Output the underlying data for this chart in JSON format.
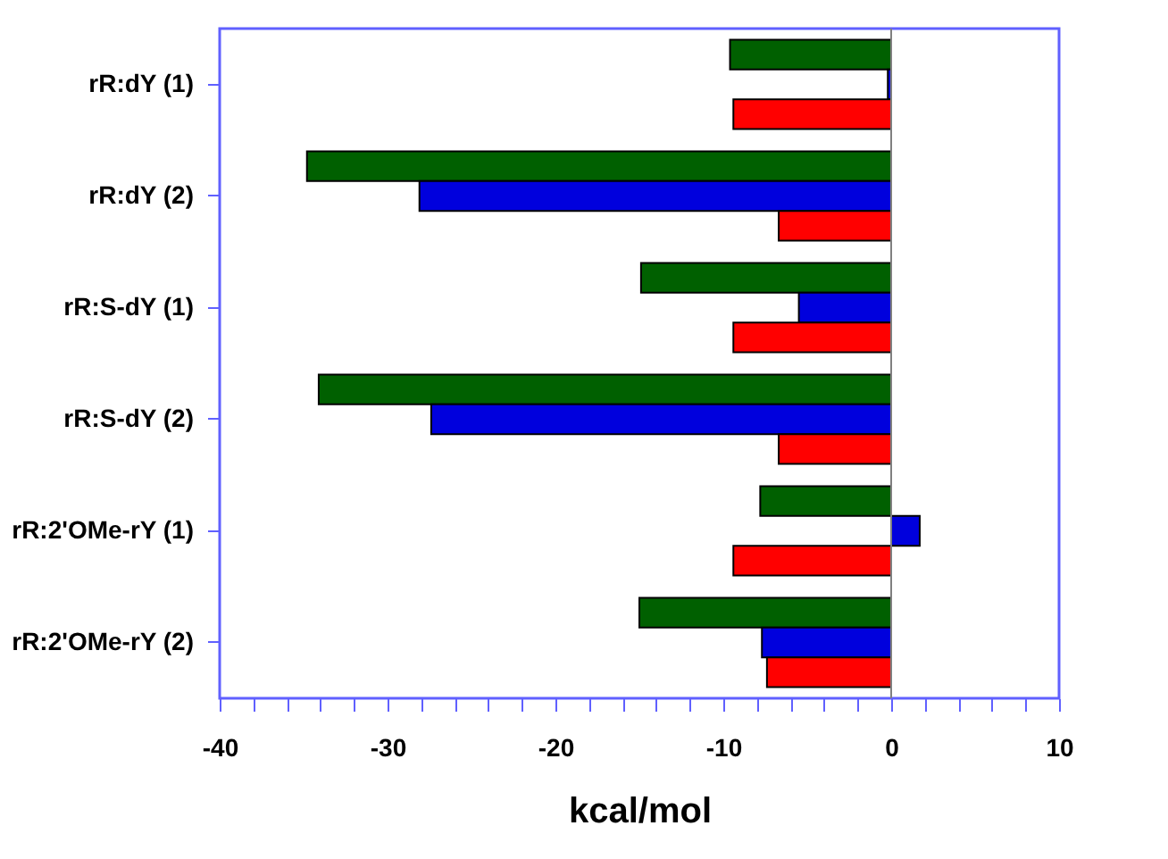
{
  "chart_data": {
    "type": "bar",
    "orientation": "horizontal",
    "xlabel": "kcal/mol",
    "categories": [
      "rR:dY (1)",
      "rR:dY (2)",
      "rR:S-dY (1)",
      "rR:S-dY (2)",
      "rR:2'OMe-rY (1)",
      "rR:2'OMe-rY (2)"
    ],
    "series": [
      {
        "color": "#006000",
        "values": [
          -9.6,
          -34.8,
          -14.9,
          -34.1,
          -7.8,
          -15.0
        ]
      },
      {
        "color": "#0000dd",
        "values": [
          -0.2,
          -28.1,
          -5.5,
          -27.4,
          1.7,
          -7.7
        ]
      },
      {
        "color": "#ff0000",
        "values": [
          -9.4,
          -6.7,
          -9.4,
          -6.7,
          -9.4,
          -7.4
        ]
      }
    ],
    "xlim": [
      -40,
      10
    ],
    "xticks": [
      -40,
      {
        "value": -38,
        "label": null
      },
      {
        "value": -36,
        "label": null
      },
      {
        "value": -34,
        "label": null
      },
      {
        "value": -32,
        "label": null
      },
      -30,
      {
        "value": -28,
        "label": null
      },
      {
        "value": -26,
        "label": null
      },
      {
        "value": -24,
        "label": null
      },
      {
        "value": -22,
        "label": null
      },
      -20,
      {
        "value": -18,
        "label": null
      },
      {
        "value": -16,
        "label": null
      },
      {
        "value": -14,
        "label": null
      },
      {
        "value": -12,
        "label": null
      },
      -10,
      {
        "value": -8,
        "label": null
      },
      {
        "value": -6,
        "label": null
      },
      {
        "value": -4,
        "label": null
      },
      {
        "value": -2,
        "label": null
      },
      0,
      {
        "value": 2,
        "label": null
      },
      {
        "value": 4,
        "label": null
      },
      {
        "value": 6,
        "label": null
      },
      {
        "value": 8,
        "label": null
      },
      10
    ],
    "ref_lines": [
      {
        "axis": "x",
        "value": 0,
        "color": "#808080"
      }
    ],
    "grid": false,
    "legend": false
  }
}
